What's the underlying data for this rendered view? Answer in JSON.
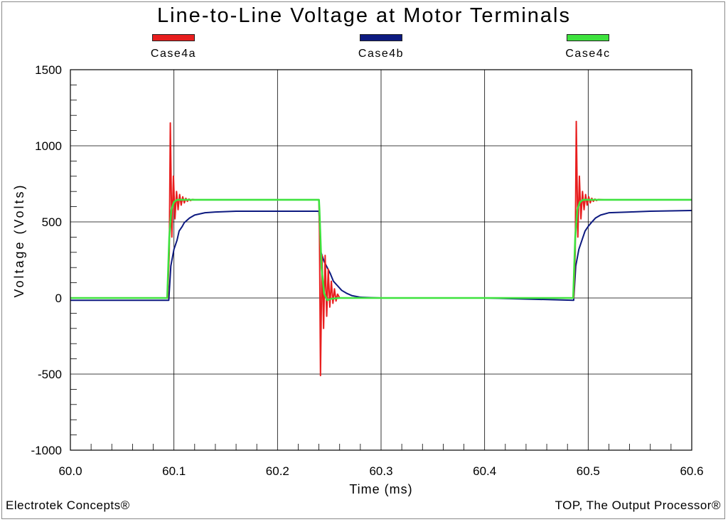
{
  "chart_data": {
    "type": "line",
    "title": "Line-to-Line Voltage at Motor Terminals",
    "xlabel": "Time (ms)",
    "ylabel": "Voltage (Volts)",
    "xlim": [
      60.0,
      60.6
    ],
    "ylim": [
      -1000,
      1500
    ],
    "x_ticks": [
      "60.0",
      "60.1",
      "60.2",
      "60.3",
      "60.4",
      "60.5",
      "60.6"
    ],
    "y_ticks": [
      "1500",
      "1000",
      "500",
      "0",
      "-500",
      "-1000"
    ],
    "grid": true,
    "legend_position": "top",
    "series": [
      {
        "name": "Case4a",
        "color": "#e81e1e",
        "x": [
          60.0,
          60.094,
          60.0955,
          60.0965,
          60.098,
          60.0995,
          60.101,
          60.1025,
          60.104,
          60.1055,
          60.107,
          60.1085,
          60.11,
          60.1115,
          60.113,
          60.1145,
          60.116,
          60.118,
          60.12,
          60.125,
          60.24,
          60.2405,
          60.2415,
          60.243,
          60.2445,
          60.246,
          60.2475,
          60.249,
          60.2505,
          60.252,
          60.2535,
          60.255,
          60.2565,
          60.258,
          60.26,
          60.265,
          60.3,
          60.4,
          60.486,
          60.4875,
          60.4885,
          60.49,
          60.4915,
          60.493,
          60.4945,
          60.496,
          60.4975,
          60.499,
          60.5005,
          60.502,
          60.5035,
          60.505,
          60.5065,
          60.508,
          60.51,
          60.515,
          60.6
        ],
        "y": [
          0,
          0,
          300,
          1150,
          400,
          800,
          520,
          700,
          580,
          680,
          610,
          665,
          625,
          655,
          635,
          650,
          640,
          648,
          645,
          645,
          645,
          450,
          -510,
          280,
          -200,
          280,
          -120,
          190,
          -60,
          110,
          -35,
          60,
          -20,
          25,
          0,
          0,
          0,
          0,
          0,
          300,
          1160,
          400,
          800,
          520,
          700,
          580,
          680,
          610,
          665,
          625,
          655,
          635,
          650,
          640,
          648,
          645,
          645
        ]
      },
      {
        "name": "Case4b",
        "color": "#0d1a80",
        "x": [
          60.0,
          60.095,
          60.097,
          60.1,
          60.103,
          60.105,
          60.108,
          60.11,
          60.115,
          60.12,
          60.13,
          60.14,
          60.16,
          60.2,
          60.24,
          60.242,
          60.245,
          60.248,
          60.251,
          60.254,
          60.258,
          60.262,
          60.267,
          60.272,
          60.28,
          60.3,
          60.4,
          60.486,
          60.488,
          60.491,
          60.494,
          60.497,
          60.5,
          60.503,
          60.507,
          60.512,
          60.52,
          60.54,
          60.56,
          60.6
        ],
        "y": [
          -15,
          -15,
          210,
          320,
          380,
          440,
          470,
          495,
          525,
          545,
          560,
          565,
          570,
          570,
          570,
          300,
          240,
          200,
          160,
          110,
          80,
          50,
          30,
          15,
          5,
          0,
          0,
          -15,
          210,
          320,
          380,
          440,
          470,
          495,
          525,
          545,
          560,
          565,
          570,
          575
        ]
      },
      {
        "name": "Case4c",
        "color": "#3ee23e",
        "x": [
          60.0,
          60.0935,
          60.0955,
          60.0975,
          60.1,
          60.103,
          60.11,
          60.24,
          60.2405,
          60.2425,
          60.245,
          60.248,
          60.252,
          60.26,
          60.3,
          60.4,
          60.4855,
          60.4875,
          60.4895,
          60.492,
          60.495,
          60.502,
          60.6
        ],
        "y": [
          0,
          0,
          400,
          580,
          630,
          645,
          645,
          645,
          580,
          200,
          30,
          -15,
          -5,
          0,
          0,
          0,
          0,
          400,
          580,
          630,
          645,
          645,
          645
        ]
      }
    ]
  },
  "footer": {
    "left": "Electrotek Concepts®",
    "right": "TOP, The Output Processor®"
  }
}
